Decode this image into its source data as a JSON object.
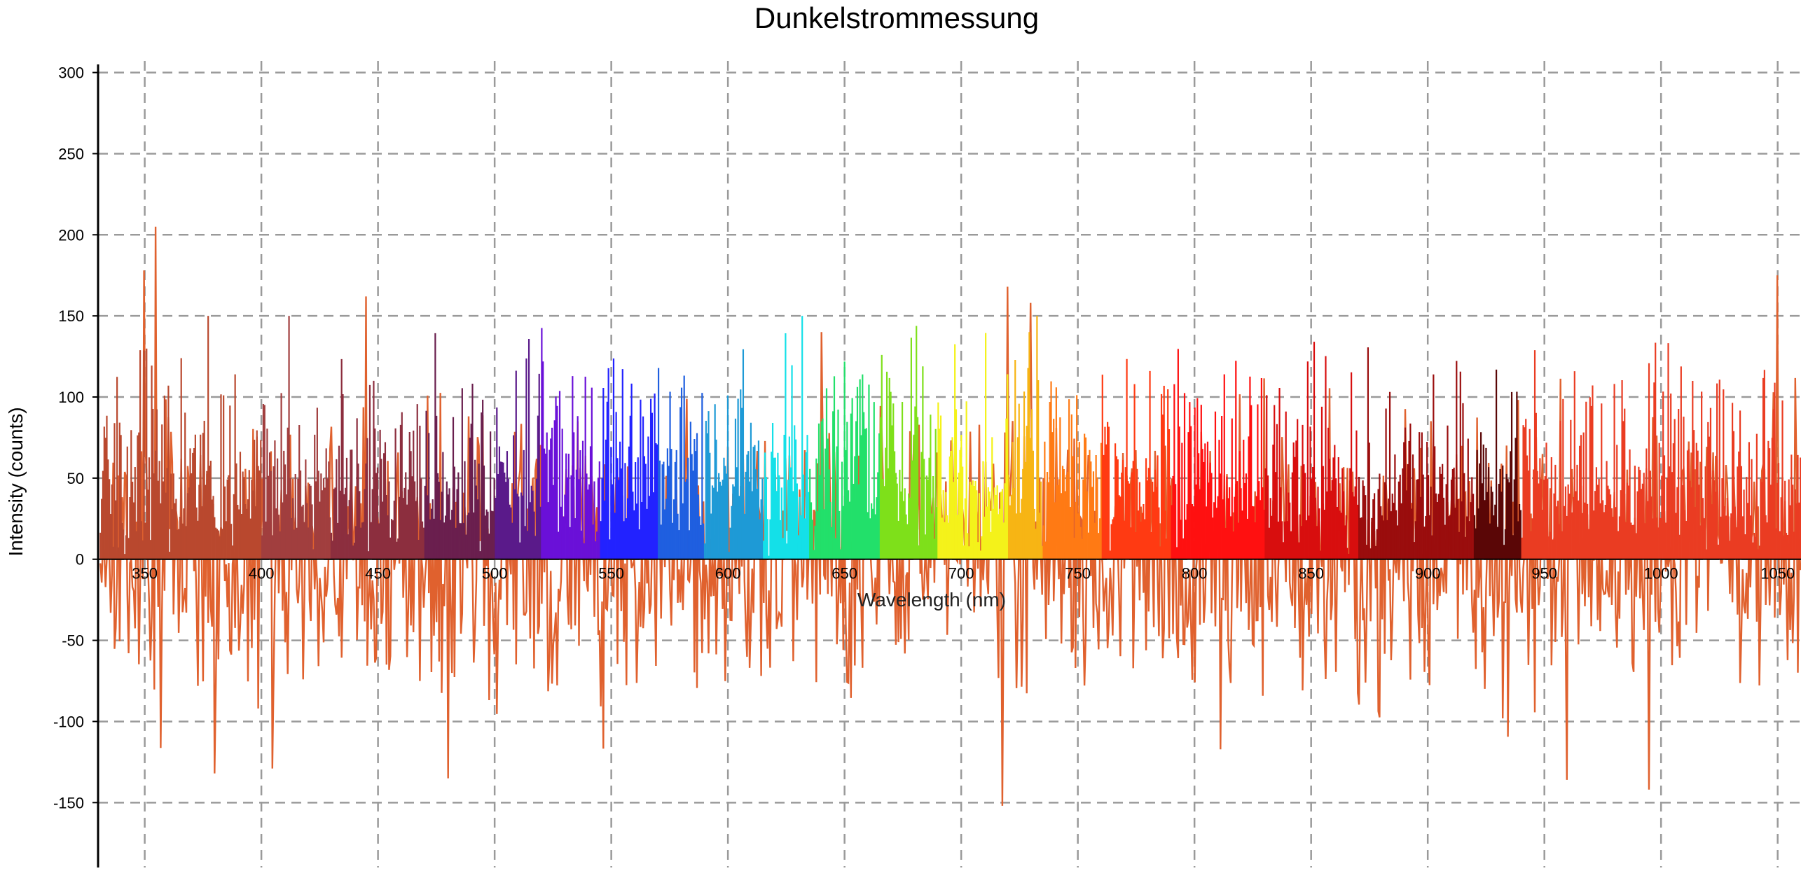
{
  "chart_data": {
    "type": "bar",
    "title": "Dunkelstrommessung",
    "xlabel": "Wavelength (nm)",
    "ylabel": "Intensity (counts)",
    "x_axis_unit": "nm",
    "xlim": [
      330,
      1060
    ],
    "ylim": [
      -190,
      305
    ],
    "y_ticks": [
      300,
      250,
      200,
      150,
      100,
      50,
      0,
      -50,
      -100,
      -150
    ],
    "x_ticks": [
      350,
      400,
      450,
      500,
      550,
      600,
      650,
      700,
      750,
      800,
      850,
      900,
      950,
      1000,
      1050
    ],
    "x_tick_labels": [
      "350",
      "400",
      "450",
      "500",
      "550",
      "600",
      "650",
      "700",
      "750",
      "800",
      "850",
      "900",
      "950",
      "1000",
      "1050"
    ],
    "grid": true,
    "legend": "none",
    "noise_color": "#e0612e",
    "spectrum_bands": [
      {
        "from": 330,
        "to": 400,
        "color": "#b9482e"
      },
      {
        "from": 400,
        "to": 430,
        "color": "#a13e3e"
      },
      {
        "from": 430,
        "to": 470,
        "color": "#8c2e3e"
      },
      {
        "from": 470,
        "to": 500,
        "color": "#6a1f4e"
      },
      {
        "from": 500,
        "to": 520,
        "color": "#5a1a8a"
      },
      {
        "from": 520,
        "to": 545,
        "color": "#6a10d8"
      },
      {
        "from": 545,
        "to": 570,
        "color": "#2222ff"
      },
      {
        "from": 570,
        "to": 590,
        "color": "#1f5fe0"
      },
      {
        "from": 590,
        "to": 615,
        "color": "#1e9ad6"
      },
      {
        "from": 615,
        "to": 635,
        "color": "#14e0e8"
      },
      {
        "from": 635,
        "to": 665,
        "color": "#22e06a"
      },
      {
        "from": 665,
        "to": 690,
        "color": "#7ee01a"
      },
      {
        "from": 690,
        "to": 720,
        "color": "#f4f21a"
      },
      {
        "from": 720,
        "to": 735,
        "color": "#f7b514"
      },
      {
        "from": 735,
        "to": 760,
        "color": "#ff7a14"
      },
      {
        "from": 760,
        "to": 790,
        "color": "#ff3a12"
      },
      {
        "from": 790,
        "to": 830,
        "color": "#ff1010"
      },
      {
        "from": 830,
        "to": 870,
        "color": "#d80e0e"
      },
      {
        "from": 870,
        "to": 920,
        "color": "#9a0d0d"
      },
      {
        "from": 920,
        "to": 940,
        "color": "#5a0606"
      },
      {
        "from": 940,
        "to": 1060,
        "color": "#ea3c22"
      }
    ],
    "noise_amplitude_typical": 60,
    "peaks": [
      {
        "x": 355,
        "y": 205
      },
      {
        "x": 350,
        "y": 178
      },
      {
        "x": 445,
        "y": 162
      },
      {
        "x": 718,
        "y": 172
      },
      {
        "x": 720,
        "y": 168
      },
      {
        "x": 730,
        "y": 158
      },
      {
        "x": 1050,
        "y": 175
      },
      {
        "x": 640,
        "y": 140
      },
      {
        "x": 380,
        "y": -132
      },
      {
        "x": 718,
        "y": -152
      },
      {
        "x": 995,
        "y": -142
      },
      {
        "x": 960,
        "y": -136
      },
      {
        "x": 480,
        "y": -135
      }
    ]
  }
}
